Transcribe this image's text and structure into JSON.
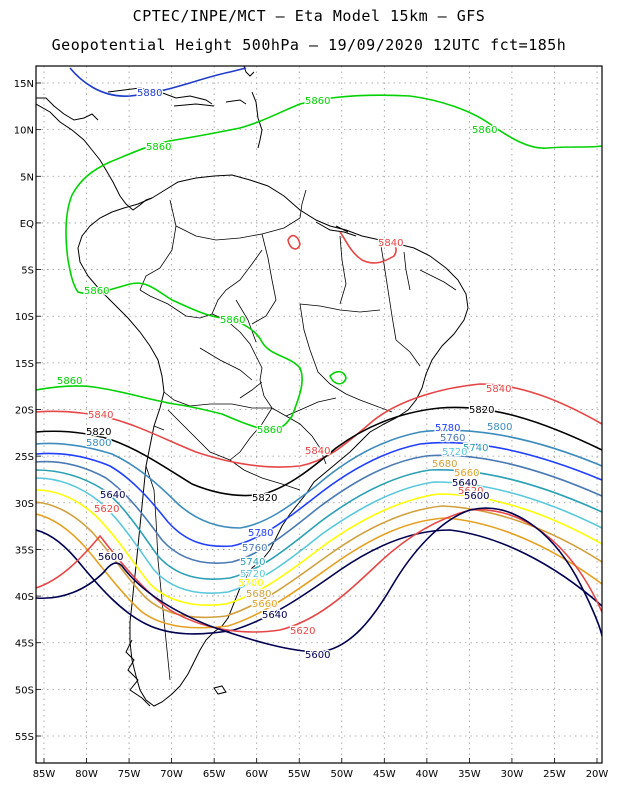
{
  "title_line1": "CPTEC/INPE/MCT –  Eta Model 15km – GFS",
  "title_line2": "Geopotential Height 500hPa – 19/09/2020 12UTC fct=185h",
  "lat_ticks": [
    "15N",
    "10N",
    "5N",
    "EQ",
    "5S",
    "10S",
    "15S",
    "20S",
    "25S",
    "30S",
    "35S",
    "40S",
    "45S",
    "50S",
    "55S"
  ],
  "lon_ticks": [
    "85W",
    "80W",
    "75W",
    "70W",
    "65W",
    "60W",
    "55W",
    "50W",
    "45W",
    "40W",
    "35W",
    "30W",
    "25W",
    "20W"
  ],
  "contour_colors": {
    "5880": "#1e3cc8",
    "5860": "#00d200",
    "5840": "#e64646",
    "5820": "#000000",
    "5800": "#3c8cbe",
    "5780": "#2040ff",
    "5760": "#4a7ab4",
    "5740": "#2aa0b4",
    "5720": "#5ac8dc",
    "5700": "#ffff00",
    "5680": "#d2a03c",
    "5660": "#e6a020",
    "5640": "#000050",
    "5620": "#e64646",
    "5600": "#000050"
  },
  "labels": [
    {
      "text": "5880",
      "color_key": "5880"
    },
    {
      "text": "5860",
      "color_key": "5860"
    },
    {
      "text": "5860",
      "color_key": "5860"
    },
    {
      "text": "5860",
      "color_key": "5860"
    },
    {
      "text": "5860",
      "color_key": "5860"
    },
    {
      "text": "5860",
      "color_key": "5860"
    },
    {
      "text": "5860",
      "color_key": "5860"
    },
    {
      "text": "5860",
      "color_key": "5860"
    },
    {
      "text": "5840",
      "color_key": "5840"
    },
    {
      "text": "5840",
      "color_key": "5840"
    },
    {
      "text": "5840",
      "color_key": "5840"
    },
    {
      "text": "5840",
      "color_key": "5840"
    },
    {
      "text": "5820",
      "color_key": "5820"
    },
    {
      "text": "5820",
      "color_key": "5820"
    },
    {
      "text": "5820",
      "color_key": "5820"
    },
    {
      "text": "5800",
      "color_key": "5800"
    },
    {
      "text": "5800",
      "color_key": "5800"
    },
    {
      "text": "5780",
      "color_key": "5780"
    },
    {
      "text": "5780",
      "color_key": "5780"
    },
    {
      "text": "5760",
      "color_key": "5760"
    },
    {
      "text": "5760",
      "color_key": "5760"
    },
    {
      "text": "5740",
      "color_key": "5740"
    },
    {
      "text": "5740",
      "color_key": "5740"
    },
    {
      "text": "5720",
      "color_key": "5720"
    },
    {
      "text": "5720",
      "color_key": "5720"
    },
    {
      "text": "5700",
      "color_key": "5700"
    },
    {
      "text": "5680",
      "color_key": "5680"
    },
    {
      "text": "5680",
      "color_key": "5680"
    },
    {
      "text": "5660",
      "color_key": "5660"
    },
    {
      "text": "5660",
      "color_key": "5660"
    },
    {
      "text": "5640",
      "color_key": "5640"
    },
    {
      "text": "5640",
      "color_key": "5640"
    },
    {
      "text": "5640",
      "color_key": "5640"
    },
    {
      "text": "5620",
      "color_key": "5620"
    },
    {
      "text": "5620",
      "color_key": "5620"
    },
    {
      "text": "5620",
      "color_key": "5620"
    },
    {
      "text": "5600",
      "color_key": "5600"
    },
    {
      "text": "5600",
      "color_key": "5600"
    },
    {
      "text": "5600",
      "color_key": "5600"
    }
  ]
}
